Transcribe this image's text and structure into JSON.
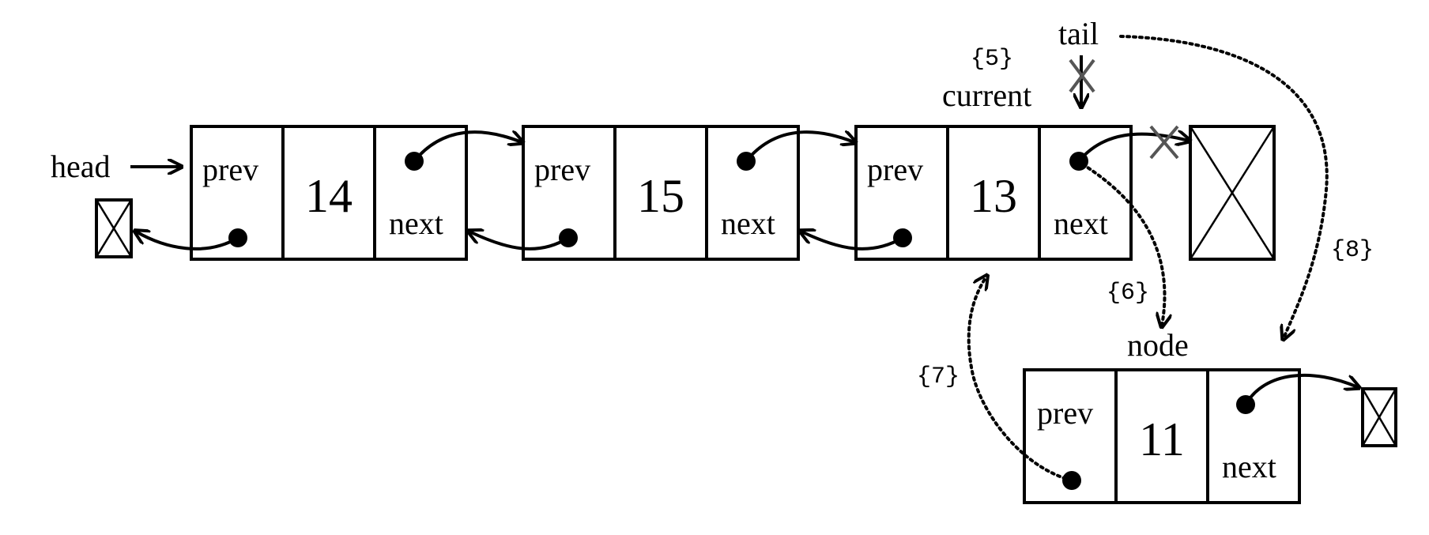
{
  "labels": {
    "head": "head",
    "tail": "tail",
    "current": "current",
    "node": "node"
  },
  "field_labels": {
    "prev": "prev",
    "next": "next"
  },
  "nodes": [
    {
      "value": "14"
    },
    {
      "value": "15"
    },
    {
      "value": "13"
    },
    {
      "value": "11"
    }
  ],
  "steps": {
    "s5": "{5}",
    "s6": "{6}",
    "s7": "{7}",
    "s8": "{8}"
  }
}
